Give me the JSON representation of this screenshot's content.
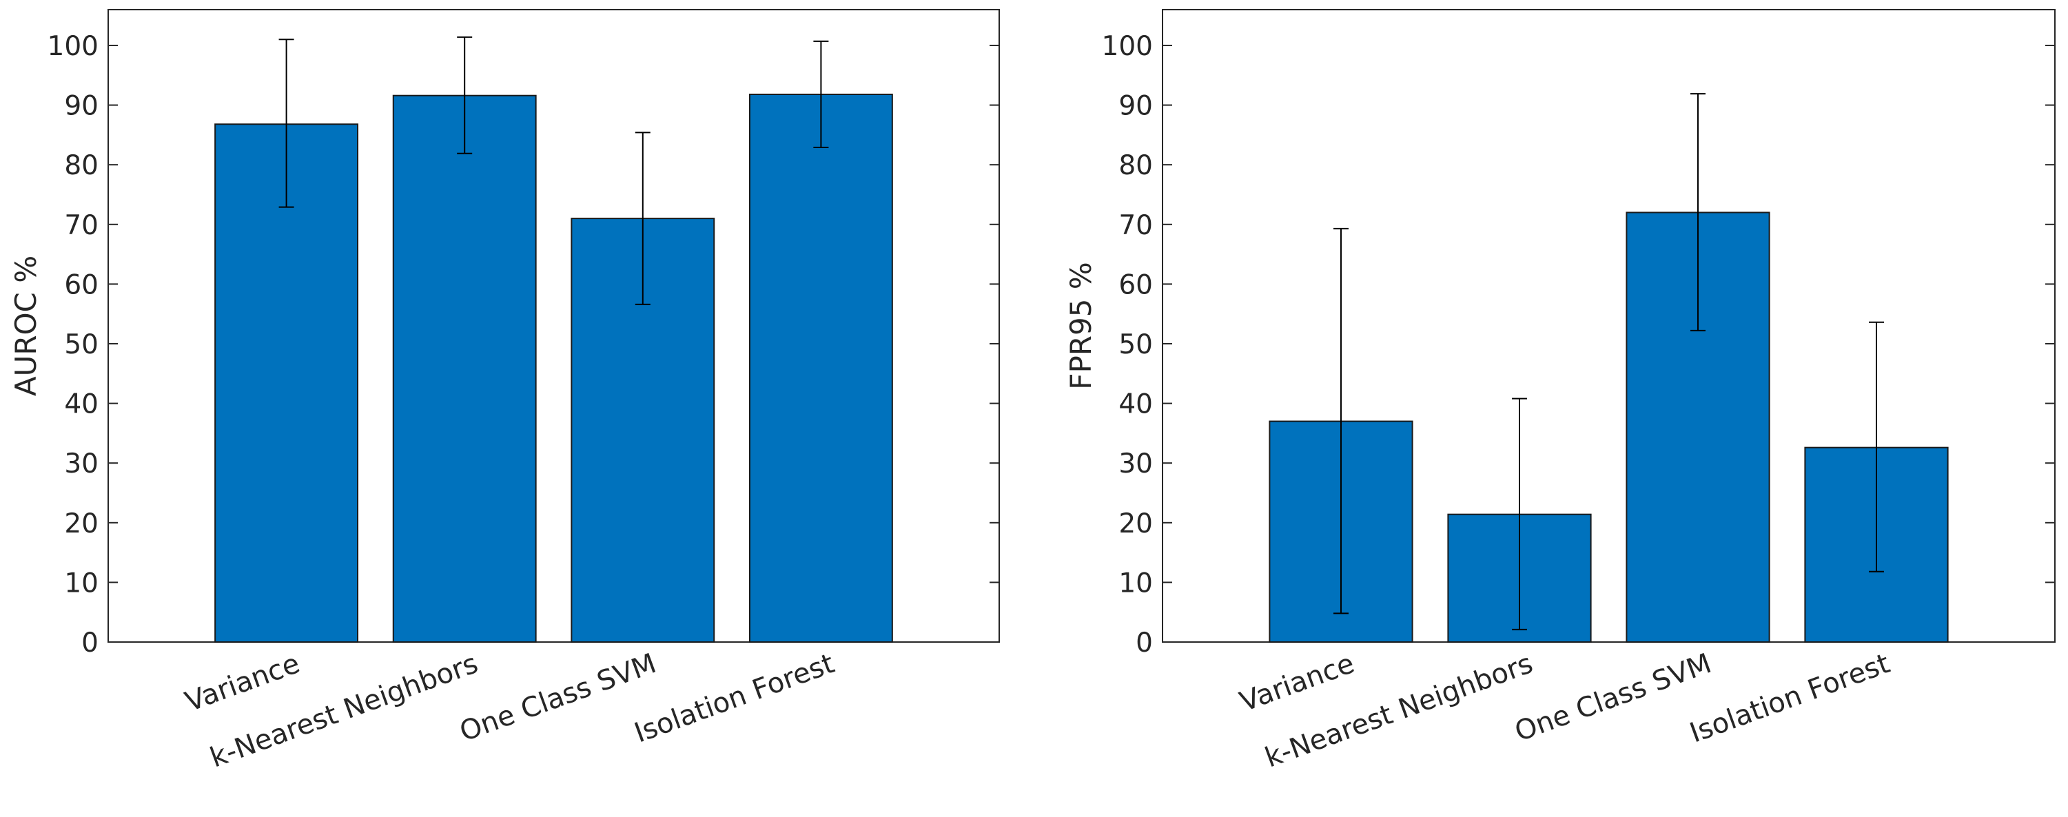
{
  "colors": {
    "bar": "#0072BD",
    "edge": "#262626",
    "text": "#262626",
    "background": "#ffffff"
  },
  "chart_data": [
    {
      "type": "bar",
      "title": "",
      "xlabel": "",
      "ylabel": "AUROC %",
      "ylim": [
        0,
        106
      ],
      "yticks": [
        0,
        10,
        20,
        30,
        40,
        50,
        60,
        70,
        80,
        90,
        100
      ],
      "grid": false,
      "categories": [
        "Variance",
        "k-Nearest Neighbors",
        "One Class SVM",
        "Isolation Forest"
      ],
      "values": [
        86.8,
        91.6,
        71.0,
        91.8
      ],
      "error_low": [
        72.9,
        81.9,
        56.6,
        82.9
      ],
      "error_high": [
        101.0,
        101.4,
        85.4,
        100.7
      ]
    },
    {
      "type": "bar",
      "title": "",
      "xlabel": "",
      "ylabel": "FPR95 %",
      "ylim": [
        0,
        106
      ],
      "yticks": [
        0,
        10,
        20,
        30,
        40,
        50,
        60,
        70,
        80,
        90,
        100
      ],
      "grid": false,
      "categories": [
        "Variance",
        "k-Nearest Neighbors",
        "One Class SVM",
        "Isolation Forest"
      ],
      "values": [
        37.0,
        21.4,
        72.0,
        32.6
      ],
      "error_low": [
        4.8,
        2.1,
        52.2,
        11.8
      ],
      "error_high": [
        69.3,
        40.8,
        91.9,
        53.6
      ]
    }
  ]
}
